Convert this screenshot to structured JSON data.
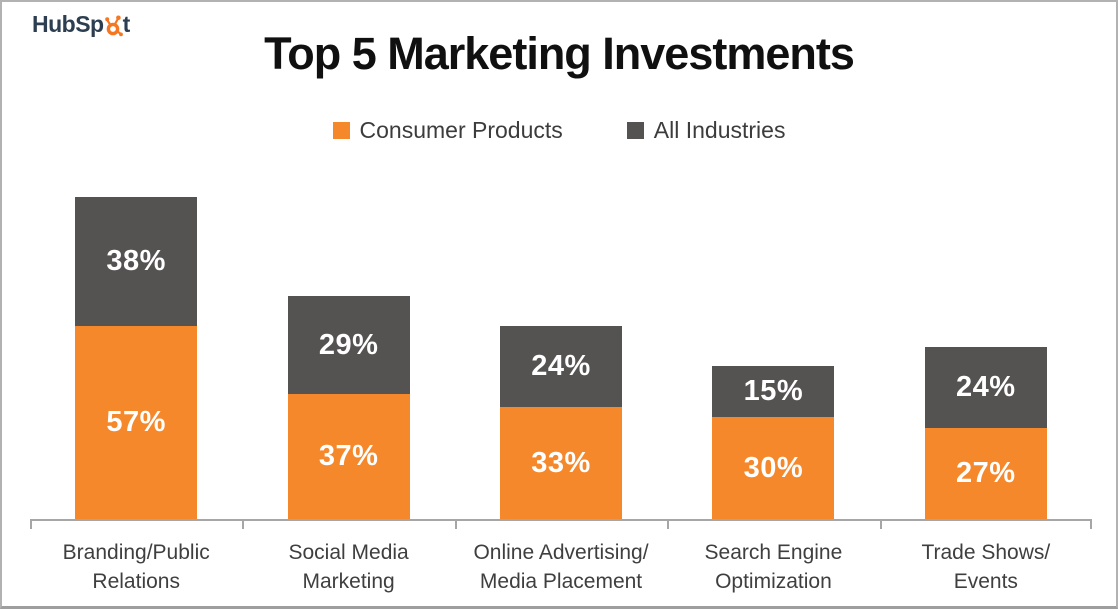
{
  "logo": {
    "brand": "HubSpot",
    "text_before": "HubSp",
    "text_after": "t",
    "text_color": "#2d3e50",
    "sprocket_color": "#f57722"
  },
  "chart_data": {
    "type": "bar",
    "stacked": true,
    "orientation": "vertical",
    "title": "Top 5 Marketing Investments",
    "categories": [
      "Branding/Public Relations",
      "Social Media Marketing",
      "Online Advertising/ Media Placement",
      "Search Engine Optimization",
      "Trade Shows/ Events"
    ],
    "category_label_lines": [
      [
        "Branding/Public",
        "Relations"
      ],
      [
        "Social Media",
        "Marketing"
      ],
      [
        "Online Advertising/",
        "Media Placement"
      ],
      [
        "Search Engine",
        "Optimization"
      ],
      [
        "Trade Shows/",
        "Events"
      ]
    ],
    "series": [
      {
        "name": "Consumer Products",
        "color": "#F6882C",
        "values": [
          57,
          37,
          33,
          30,
          27
        ]
      },
      {
        "name": "All Industries",
        "color": "#555252",
        "values": [
          38,
          29,
          24,
          15,
          24
        ]
      }
    ],
    "value_labels": [
      [
        "57%",
        "37%",
        "33%",
        "30%",
        "27%"
      ],
      [
        "38%",
        "29%",
        "24%",
        "15%",
        "24%"
      ]
    ],
    "value_format": "percent",
    "legend_position": "top",
    "grid": false,
    "y_axis": {
      "visible": false,
      "implied_range": [
        0,
        100
      ]
    },
    "x_axis": {
      "visible": true,
      "line_color": "#a6a6a6",
      "tick_marks": true
    }
  }
}
